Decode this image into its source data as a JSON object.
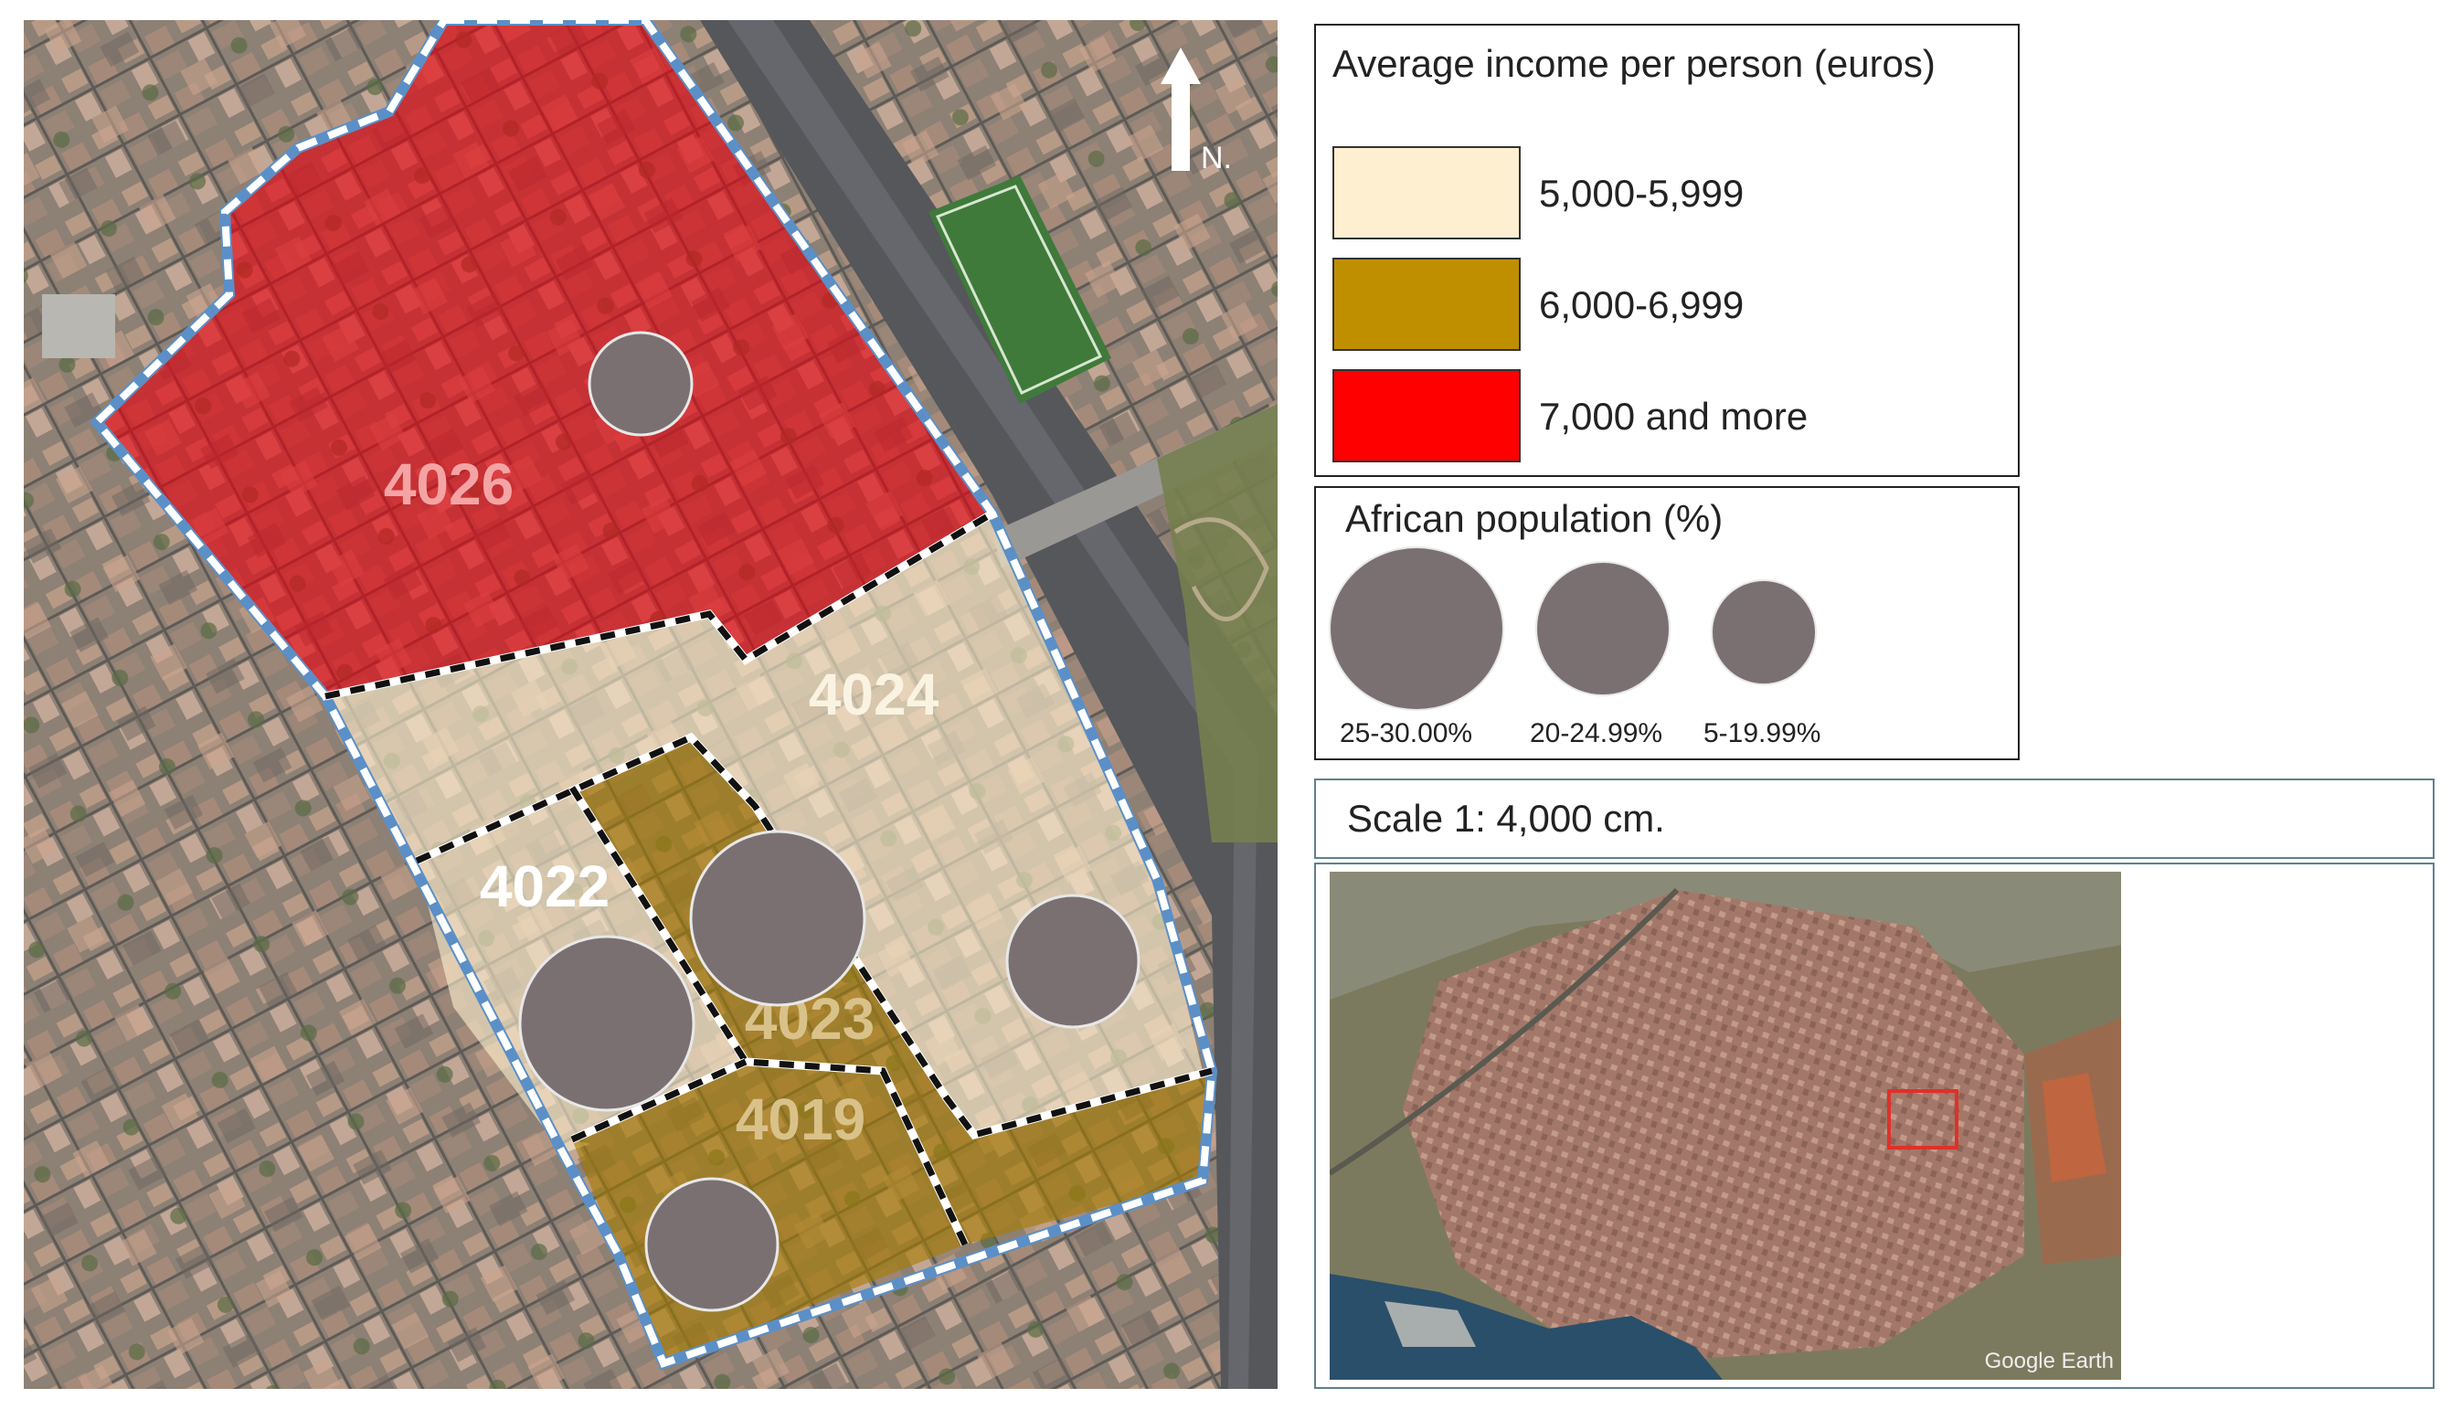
{
  "map": {
    "tracts": [
      {
        "id": "t4026",
        "label": "4026",
        "income_class": "7,000 and more"
      },
      {
        "id": "t4024",
        "label": "4024",
        "income_class": "5,000-5,999"
      },
      {
        "id": "t4022",
        "label": "4022",
        "income_class": "5,000-5,999"
      },
      {
        "id": "t4023",
        "label": "4023",
        "income_class": "6,000-6,999"
      },
      {
        "id": "t4019",
        "label": "4019",
        "income_class": "6,000-6,999"
      }
    ],
    "north_label": "N."
  },
  "legend_income": {
    "title": "Average income per person (euros)",
    "classes": [
      {
        "label": "5,000-5,999",
        "color": "#fdefcf"
      },
      {
        "label": "6,000-6,999",
        "color": "#bf8f00"
      },
      {
        "label": "7,000 and more",
        "color": "#ff0000"
      }
    ]
  },
  "legend_african": {
    "title": "African population (%)",
    "classes": [
      {
        "label": "25-30.00%"
      },
      {
        "label": "20-24.99%"
      },
      {
        "label": "5-19.99%"
      }
    ]
  },
  "scale": {
    "text": "Scale 1: 4,000 cm."
  },
  "inset": {
    "watermark": "Google Earth",
    "highlight_color": "#e0302a"
  },
  "colors": {
    "circle": "#7a7072",
    "boundary_blue": "#5b8fc7"
  }
}
